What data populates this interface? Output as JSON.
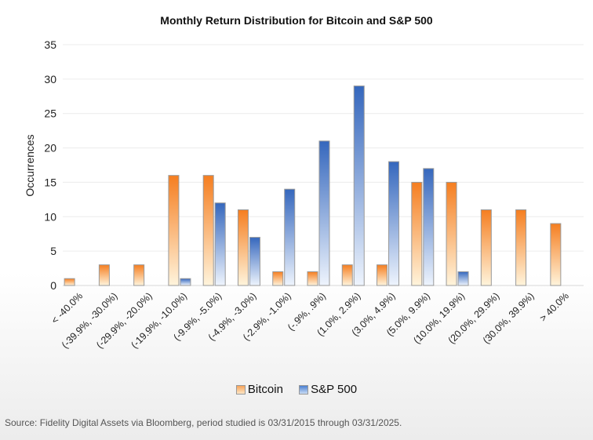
{
  "chart_data": {
    "type": "bar",
    "title": "Monthly Return Distribution for Bitcoin and S&P 500",
    "xlabel": "",
    "ylabel": "Occurrences",
    "ylim": [
      0,
      35
    ],
    "yticks": [
      0,
      5,
      10,
      15,
      20,
      25,
      30,
      35
    ],
    "grid": true,
    "legend_position": "bottom",
    "categories": [
      "< -40.0%",
      "(-39.9%, -30.0%)",
      "(-29.9%, -20.0%)",
      "(-19.9%, -10.0%)",
      "(-9.9%, -5.0%)",
      "(-4.9%, -3.0%)",
      "(-2.9%, -1.0%)",
      "(-.9%, .9%)",
      "(1.0%, 2.9%)",
      "(3.0%, 4.9%)",
      "(5.0%, 9.9%)",
      "(10.0%, 19.9%)",
      "(20.0%, 29.9%)",
      "(30.0%, 39.9%)",
      "> 40.0%"
    ],
    "series": [
      {
        "name": "Bitcoin",
        "color": "#f58a2e",
        "values": [
          1,
          3,
          3,
          16,
          16,
          11,
          2,
          2,
          3,
          3,
          15,
          15,
          11,
          11,
          9
        ]
      },
      {
        "name": "S&P 500",
        "color": "#3a6fc4",
        "values": [
          0,
          0,
          0,
          1,
          12,
          7,
          14,
          21,
          29,
          18,
          17,
          2,
          0,
          0,
          0
        ]
      }
    ]
  },
  "source": "Source: Fidelity Digital Assets via Bloomberg, period studied is 03/31/2015 through 03/31/2025."
}
